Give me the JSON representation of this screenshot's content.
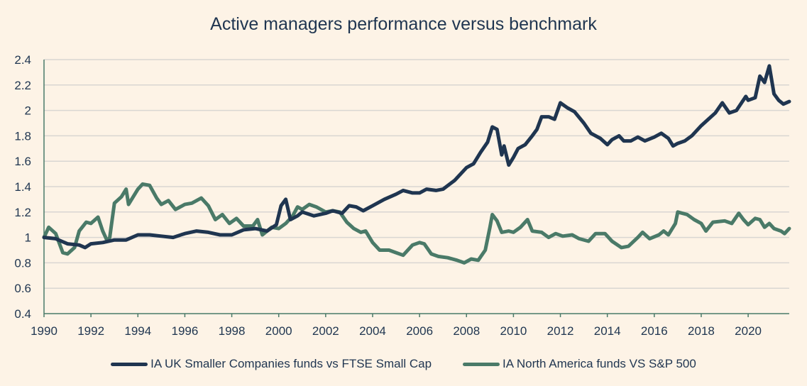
{
  "chart_data": {
    "type": "line",
    "title": "Active managers performance versus benchmark",
    "xlabel": "",
    "ylabel": "",
    "xlim": [
      1990,
      2021.75
    ],
    "ylim": [
      0.4,
      2.4
    ],
    "x_ticks": [
      "1990",
      "1992",
      "1994",
      "1996",
      "1998",
      "2000",
      "2002",
      "2004",
      "2006",
      "2008",
      "2010",
      "2012",
      "2014",
      "2016",
      "2018",
      "2020"
    ],
    "y_ticks": [
      "0.4",
      "0.6",
      "0.8",
      "1",
      "1.2",
      "1.4",
      "1.6",
      "1.8",
      "2",
      "2.2",
      "2.4"
    ],
    "grid": "horizontal",
    "legend_position": "bottom",
    "series": [
      {
        "name": "IA UK Smaller Companies funds vs FTSE Small Cap",
        "color": "#1f3550",
        "x": [
          1990,
          1990.5,
          1990.75,
          1991,
          1991.5,
          1991.75,
          1992,
          1992.5,
          1993,
          1993.5,
          1994,
          1994.5,
          1995,
          1995.5,
          1996,
          1996.5,
          1997,
          1997.5,
          1998,
          1998.5,
          1999,
          1999.5,
          1999.9,
          2000.1,
          2000.3,
          2000.5,
          2000.8,
          2001,
          2001.5,
          2002,
          2002.3,
          2002.7,
          2003,
          2003.3,
          2003.6,
          2004,
          2004.5,
          2005,
          2005.3,
          2005.7,
          2006,
          2006.3,
          2006.7,
          2007,
          2007.5,
          2008,
          2008.3,
          2008.6,
          2008.9,
          2009.1,
          2009.3,
          2009.5,
          2009.6,
          2009.8,
          2010,
          2010.2,
          2010.5,
          2010.8,
          2011,
          2011.2,
          2011.5,
          2011.75,
          2012,
          2012.3,
          2012.6,
          2013,
          2013.3,
          2013.7,
          2014,
          2014.2,
          2014.5,
          2014.7,
          2015,
          2015.3,
          2015.6,
          2016,
          2016.3,
          2016.6,
          2016.8,
          2017,
          2017.3,
          2017.6,
          2018,
          2018.3,
          2018.6,
          2018.9,
          2019.2,
          2019.5,
          2019.9,
          2020,
          2020.3,
          2020.5,
          2020.7,
          2020.9,
          2021.1,
          2021.3,
          2021.5,
          2021.75
        ],
        "y": [
          1.0,
          0.99,
          0.97,
          0.95,
          0.94,
          0.92,
          0.95,
          0.96,
          0.98,
          0.98,
          1.02,
          1.02,
          1.01,
          1.0,
          1.03,
          1.05,
          1.04,
          1.02,
          1.02,
          1.06,
          1.07,
          1.05,
          1.1,
          1.25,
          1.3,
          1.14,
          1.17,
          1.2,
          1.17,
          1.19,
          1.21,
          1.19,
          1.25,
          1.24,
          1.21,
          1.25,
          1.3,
          1.34,
          1.37,
          1.35,
          1.35,
          1.38,
          1.37,
          1.38,
          1.45,
          1.55,
          1.58,
          1.67,
          1.75,
          1.87,
          1.85,
          1.65,
          1.72,
          1.57,
          1.63,
          1.7,
          1.73,
          1.8,
          1.85,
          1.95,
          1.95,
          1.93,
          2.06,
          2.02,
          1.99,
          1.9,
          1.82,
          1.78,
          1.73,
          1.77,
          1.8,
          1.76,
          1.76,
          1.79,
          1.76,
          1.79,
          1.82,
          1.78,
          1.72,
          1.74,
          1.76,
          1.8,
          1.88,
          1.93,
          1.98,
          2.06,
          1.98,
          2.0,
          2.11,
          2.08,
          2.1,
          2.27,
          2.22,
          2.35,
          2.13,
          2.08,
          2.05,
          2.07
        ]
      },
      {
        "name": "IA North America funds VS S&P 500",
        "color": "#4a7a68",
        "x": [
          1990,
          1990.2,
          1990.5,
          1990.8,
          1991,
          1991.3,
          1991.5,
          1991.8,
          1992,
          1992.3,
          1992.5,
          1992.7,
          1992.8,
          1993,
          1993.3,
          1993.5,
          1993.6,
          1994,
          1994.2,
          1994.5,
          1994.8,
          1995,
          1995.3,
          1995.6,
          1996,
          1996.3,
          1996.7,
          1997,
          1997.3,
          1997.6,
          1997.9,
          1998.2,
          1998.5,
          1998.9,
          1999.1,
          1999.3,
          1999.7,
          2000,
          2000.3,
          2000.6,
          2000.8,
          2001,
          2001.3,
          2001.6,
          2002,
          2002.3,
          2002.6,
          2002.9,
          2003.2,
          2003.5,
          2003.7,
          2004,
          2004.3,
          2004.7,
          2005,
          2005.3,
          2005.7,
          2006,
          2006.2,
          2006.5,
          2006.8,
          2007.2,
          2007.6,
          2007.9,
          2008.2,
          2008.5,
          2008.8,
          2009,
          2009.1,
          2009.3,
          2009.5,
          2009.8,
          2010,
          2010.3,
          2010.6,
          2010.8,
          2011.2,
          2011.5,
          2011.8,
          2012.1,
          2012.5,
          2012.8,
          2013.2,
          2013.5,
          2013.9,
          2014.2,
          2014.6,
          2014.9,
          2015.3,
          2015.5,
          2015.8,
          2016.2,
          2016.4,
          2016.6,
          2016.9,
          2017,
          2017.4,
          2017.7,
          2018,
          2018.2,
          2018.5,
          2019,
          2019.3,
          2019.6,
          2019.8,
          2020,
          2020.3,
          2020.5,
          2020.7,
          2020.9,
          2021.1,
          2021.4,
          2021.55,
          2021.75
        ],
        "y": [
          1.0,
          1.08,
          1.03,
          0.88,
          0.87,
          0.92,
          1.05,
          1.12,
          1.11,
          1.16,
          1.05,
          0.97,
          1.0,
          1.27,
          1.32,
          1.38,
          1.26,
          1.38,
          1.42,
          1.41,
          1.31,
          1.26,
          1.29,
          1.22,
          1.26,
          1.27,
          1.31,
          1.25,
          1.14,
          1.18,
          1.11,
          1.15,
          1.09,
          1.09,
          1.14,
          1.02,
          1.08,
          1.07,
          1.11,
          1.17,
          1.24,
          1.22,
          1.26,
          1.24,
          1.2,
          1.21,
          1.2,
          1.12,
          1.07,
          1.04,
          1.05,
          0.96,
          0.9,
          0.9,
          0.88,
          0.86,
          0.94,
          0.96,
          0.95,
          0.87,
          0.85,
          0.84,
          0.82,
          0.8,
          0.83,
          0.82,
          0.9,
          1.08,
          1.18,
          1.13,
          1.04,
          1.05,
          1.04,
          1.08,
          1.14,
          1.05,
          1.04,
          1.0,
          1.03,
          1.01,
          1.02,
          0.99,
          0.97,
          1.03,
          1.03,
          0.97,
          0.92,
          0.93,
          1.0,
          1.04,
          0.99,
          1.02,
          1.05,
          1.02,
          1.11,
          1.2,
          1.18,
          1.14,
          1.11,
          1.05,
          1.12,
          1.13,
          1.11,
          1.19,
          1.14,
          1.1,
          1.15,
          1.14,
          1.08,
          1.11,
          1.07,
          1.05,
          1.03,
          1.07
        ]
      }
    ]
  }
}
